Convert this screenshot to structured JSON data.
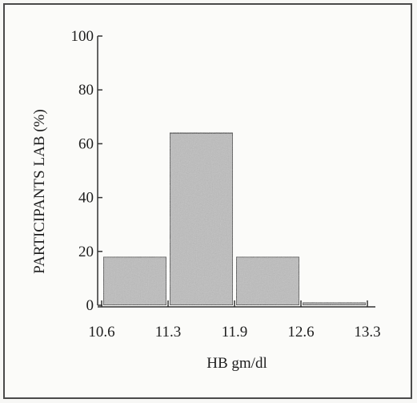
{
  "chart_data": {
    "type": "bar",
    "bin_edges": [
      "10.6",
      "11.3",
      "11.9",
      "12.6",
      "13.3"
    ],
    "values": [
      18,
      64,
      18,
      1
    ],
    "xlabel": "HB gm/dl",
    "ylabel": "PARTICIPANTS LAB (%)",
    "yticks": [
      0,
      20,
      40,
      60,
      80,
      100
    ],
    "ylim": [
      0,
      100
    ],
    "grid": false,
    "bar_color": "#bdbdbd",
    "axis_color": "#333333"
  }
}
